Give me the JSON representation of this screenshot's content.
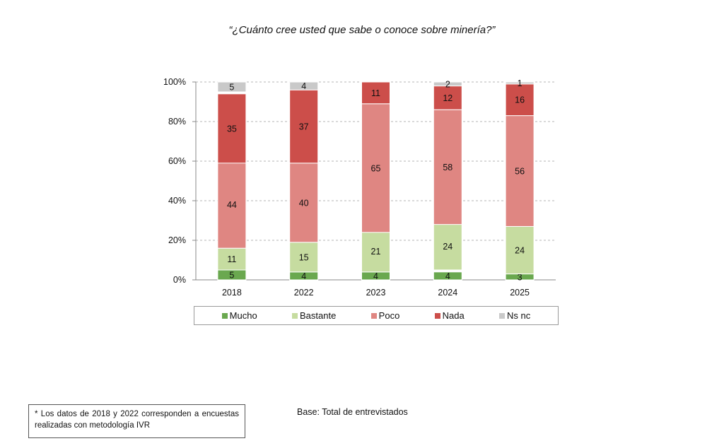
{
  "title": "“¿Cuánto cree usted que sabe o conoce sobre minería?”",
  "chart_data": {
    "type": "bar",
    "stacked": true,
    "categories": [
      "2018",
      "2022",
      "2023",
      "2024",
      "2025"
    ],
    "series": [
      {
        "name": "Mucho",
        "color": "#6aa84f",
        "values": [
          5,
          4,
          4,
          4,
          3
        ],
        "cum_top": [
          5,
          4,
          4,
          4,
          3
        ]
      },
      {
        "name": "Bastante",
        "color": "#c6dca0",
        "values": [
          11,
          15,
          21,
          24,
          24
        ],
        "cum_top": [
          16,
          19,
          25,
          29,
          27
        ]
      },
      {
        "name": "Poco",
        "color": "#df8682",
        "values": [
          44,
          40,
          65,
          58,
          56
        ],
        "cum_top": [
          60,
          59,
          89,
          86,
          83
        ]
      },
      {
        "name": "Nada",
        "color": "#cc4e4a",
        "values": [
          35,
          37,
          11,
          12,
          16
        ],
        "cum_top": [
          94,
          96,
          100,
          98,
          99
        ]
      },
      {
        "name": "Ns nc",
        "color": "#c9c9c9",
        "values": [
          5,
          4,
          null,
          2,
          1
        ],
        "cum_top": [
          100,
          100,
          100,
          100,
          100
        ]
      }
    ],
    "yticks": [
      "0%",
      "20%",
      "40%",
      "60%",
      "80%",
      "100%"
    ],
    "ylim": [
      0,
      100
    ],
    "grid": true,
    "legend_position": "bottom"
  },
  "footnote": "* Los datos de 2018 y 2022 corresponden a encuestas realizadas con metodología IVR",
  "base_note": "Base: Total de entrevistados"
}
